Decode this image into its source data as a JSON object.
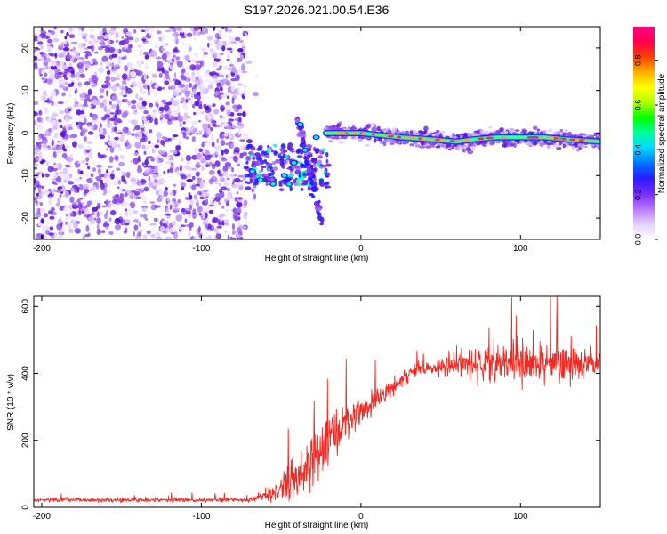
{
  "title": "S197.2026.021.00.54.E36",
  "colors": {
    "spectrogram_main": "#6a1fe0",
    "spectrogram_light": "#c9a8f5",
    "snr_line": "#ee2a24",
    "axis": "#000000"
  },
  "chart_data": [
    {
      "type": "heatmap",
      "name": "spectrogram",
      "xlabel": "Height of straight line (km)",
      "ylabel": "Frequency (Hz)",
      "xlim": [
        -205,
        150
      ],
      "ylim": [
        -25,
        25
      ],
      "xticks": [
        -200,
        -100,
        0,
        100
      ],
      "yticks": [
        20,
        10,
        0,
        -10,
        -20
      ],
      "noise_region_x": [
        -205,
        -72
      ],
      "scatter_region_x": [
        -72,
        -20
      ],
      "scatter_region_y": [
        -13,
        -3
      ],
      "branch": {
        "x": [
          -40,
          -24
        ],
        "y": [
          4,
          -22
        ]
      },
      "trace": {
        "x": [
          -22,
          0,
          25,
          45,
          60,
          70,
          85,
          100,
          115,
          130,
          150
        ],
        "y": [
          0,
          0,
          -1,
          -1.5,
          -2,
          -1.5,
          -1,
          -1,
          -1,
          -1.5,
          -2
        ]
      },
      "colorbar": {
        "label": "Normalized spectral amplitude",
        "range": [
          0,
          0.95
        ],
        "ticks": [
          0.0,
          0.2,
          0.4,
          0.6,
          0.8
        ],
        "tick_labels": [
          "0.0",
          "0.2",
          "0.4",
          "0.6",
          "0.8"
        ],
        "colormap": [
          "#ffffff",
          "#e6d3ff",
          "#b679ff",
          "#7a2bff",
          "#2a1cff",
          "#0070ff",
          "#00d8ff",
          "#00ffa0",
          "#00ff00",
          "#b0ff00",
          "#ffff00",
          "#ffb000",
          "#ff4000",
          "#ff0050",
          "#ff0080"
        ]
      }
    },
    {
      "type": "line",
      "name": "snr",
      "xlabel": "Height of straight line (km)",
      "ylabel": "SNR (10 * v/v)",
      "xlim": [
        -205,
        150
      ],
      "ylim": [
        0,
        630
      ],
      "xticks": [
        -200,
        -100,
        0,
        100
      ],
      "yticks": [
        0,
        200,
        400,
        600
      ],
      "envelope": {
        "x": [
          -205,
          -70,
          -60,
          -50,
          -40,
          -30,
          -20,
          -10,
          0,
          10,
          20,
          30,
          40,
          50,
          60,
          80,
          100,
          120,
          150
        ],
        "mean": [
          22,
          22,
          35,
          60,
          90,
          140,
          200,
          250,
          290,
          320,
          360,
          400,
          415,
          420,
          425,
          430,
          430,
          430,
          430
        ],
        "spread": [
          8,
          8,
          20,
          60,
          80,
          110,
          120,
          80,
          50,
          40,
          40,
          30,
          25,
          35,
          60,
          70,
          70,
          70,
          75
        ]
      }
    }
  ]
}
